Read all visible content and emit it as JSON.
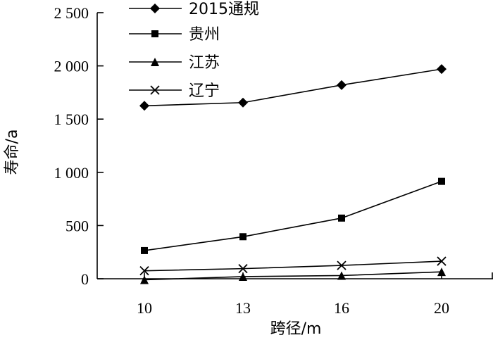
{
  "chart_data": {
    "type": "line",
    "title": "",
    "xlabel": "跨径/m",
    "ylabel": "寿命/a",
    "categories": [
      "10",
      "13",
      "16",
      "20"
    ],
    "x": [
      10,
      13,
      16,
      20
    ],
    "ylim": [
      0,
      2500
    ],
    "yticks": [
      0,
      500,
      1000,
      1500,
      2000,
      2500
    ],
    "ytick_labels": [
      "0",
      "500",
      "1 000",
      "1 500",
      "2 000",
      "2 500"
    ],
    "grid": false,
    "legend_position": "top-center",
    "series": [
      {
        "name": "2015通规",
        "marker": "diamond",
        "values": [
          1625,
          1655,
          1820,
          1970
        ]
      },
      {
        "name": "贵州",
        "marker": "square",
        "values": [
          265,
          395,
          570,
          915
        ]
      },
      {
        "name": "江苏",
        "marker": "triangle",
        "values": [
          -10,
          20,
          30,
          65
        ]
      },
      {
        "name": "辽宁",
        "marker": "x",
        "values": [
          75,
          95,
          125,
          165
        ]
      }
    ]
  }
}
